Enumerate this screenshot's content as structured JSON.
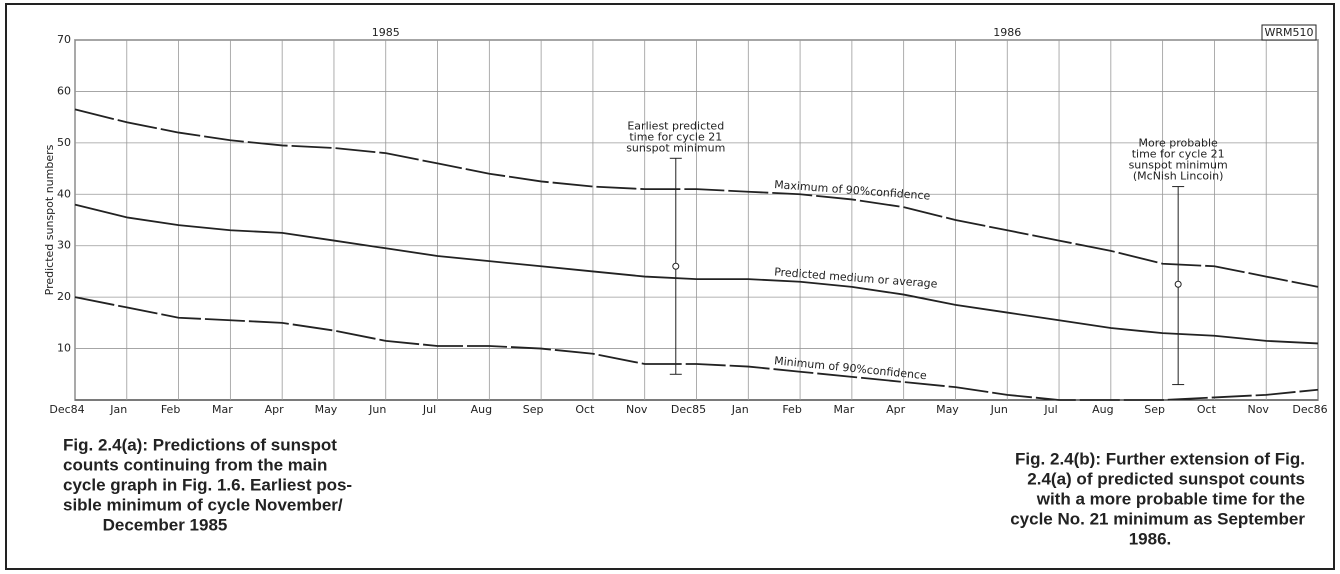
{
  "chart_data": {
    "type": "line",
    "y_axis_label": "Predicted sunspot numbers",
    "year_labels": [
      {
        "label": "1985",
        "x_index": 6
      },
      {
        "label": "1986",
        "x_index": 18
      }
    ],
    "figure_code": "WRM510",
    "categories": [
      "Dec84",
      "Jan",
      "Feb",
      "Mar",
      "Apr",
      "May",
      "Jun",
      "Jul",
      "Aug",
      "Sep",
      "Oct",
      "Nov",
      "Dec85",
      "Jan",
      "Feb",
      "Mar",
      "Apr",
      "May",
      "Jun",
      "Jul",
      "Aug",
      "Sep",
      "Oct",
      "Nov",
      "Dec86"
    ],
    "ylim": [
      0,
      70
    ],
    "yticks": [
      10,
      20,
      30,
      40,
      50,
      60,
      70
    ],
    "grid": true,
    "series": [
      {
        "name": "Maximum of 90%confidence",
        "color": "#222222",
        "dashed": true,
        "label_index": 13,
        "values": [
          56.5,
          54,
          52,
          50.5,
          49.5,
          49,
          48,
          46,
          44,
          42.5,
          41.5,
          41,
          41,
          40.5,
          40,
          39,
          37.5,
          35,
          33,
          31,
          29,
          26.5,
          26,
          24,
          22
        ]
      },
      {
        "name": "Predicted medium or average",
        "color": "#222222",
        "dashed": false,
        "label_index": 13,
        "values": [
          38,
          35.5,
          34,
          33,
          32.5,
          31,
          29.5,
          28,
          27,
          26,
          25,
          24,
          23.5,
          23.5,
          23,
          22,
          20.5,
          18.5,
          17,
          15.5,
          14,
          13,
          12.5,
          11.5,
          11
        ]
      },
      {
        "name": "Minimum of 90%confidence",
        "color": "#222222",
        "dashed": true,
        "label_index": 13,
        "values": [
          20,
          18,
          16,
          15.5,
          15,
          13.5,
          11.5,
          10.5,
          10.5,
          10,
          9,
          7,
          7,
          6.5,
          5.5,
          4.5,
          3.5,
          2.5,
          1,
          0,
          0,
          0,
          0.5,
          1,
          2
        ]
      }
    ],
    "markers": [
      {
        "text": [
          "Earliest predicted",
          "time for cycle 21",
          "sunspot minimum"
        ],
        "x_index": 11.6,
        "center": 26,
        "low": 5,
        "high": 47
      },
      {
        "text": [
          "More probable",
          "time for cycle 21",
          "sunspot minimum",
          "(McNish Lincoin)"
        ],
        "x_index": 21.3,
        "center": 22.5,
        "low": 3,
        "high": 41.5
      }
    ],
    "captions": [
      [
        "Fig. 2.4(a): Predictions of sunspot",
        "counts continuing from the main",
        "cycle graph in Fig. 1.6. Earliest pos-",
        "sible minimum of cycle November/",
        "December 1985"
      ],
      [
        "Fig. 2.4(b): Further extension of Fig.",
        "2.4(a) of predicted sunspot counts",
        "with a more probable time for the",
        "cycle No. 21 minimum as September",
        "1986."
      ]
    ]
  }
}
